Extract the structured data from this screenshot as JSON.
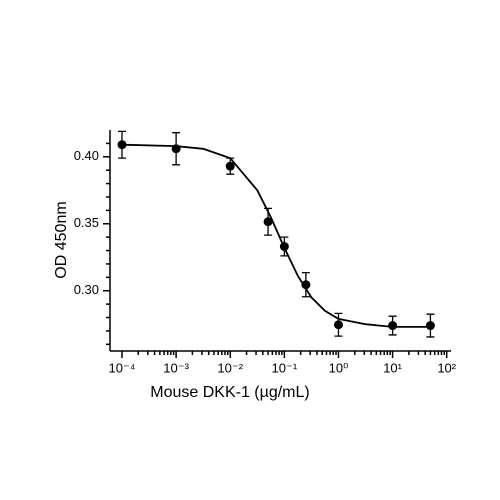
{
  "chart_data": {
    "type": "scatter",
    "xlabel": "Mouse DKK-1 (µg/mL)",
    "ylabel": "OD 450nm",
    "x": [
      0.0001,
      0.001,
      0.01,
      0.05,
      0.1,
      0.25,
      1,
      10,
      50
    ],
    "values": [
      0.409,
      0.406,
      0.393,
      0.3515,
      0.333,
      0.3045,
      0.2746,
      0.274,
      0.274
    ],
    "errors": [
      0.01,
      0.012,
      0.006,
      0.01,
      0.007,
      0.009,
      0.0085,
      0.007,
      0.0085
    ],
    "fit_x": [
      0.0001,
      0.001,
      0.00316,
      0.01,
      0.0316,
      0.0562,
      0.1,
      0.178,
      0.316,
      0.562,
      1,
      3.16,
      10,
      50
    ],
    "fit_values": [
      0.409,
      0.408,
      0.406,
      0.399,
      0.375,
      0.355,
      0.332,
      0.311,
      0.295,
      0.285,
      0.279,
      0.275,
      0.273,
      0.273
    ],
    "color": "#000000",
    "xscale": "log",
    "minor_ticks": true,
    "xlim": [
      6e-05,
      120
    ],
    "ylim": [
      0.255,
      0.42
    ],
    "xticks": [
      {
        "value": 0.0001,
        "label": "10⁻⁴"
      },
      {
        "value": 0.001,
        "label": "10⁻³"
      },
      {
        "value": 0.01,
        "label": "10⁻²"
      },
      {
        "value": 0.1,
        "label": "10⁻¹"
      },
      {
        "value": 1,
        "label": "10⁰"
      },
      {
        "value": 10,
        "label": "10¹"
      },
      {
        "value": 100,
        "label": "10²"
      }
    ],
    "yticks": [
      {
        "value": 0.3,
        "label": "0.30"
      },
      {
        "value": 0.35,
        "label": "0.35"
      },
      {
        "value": 0.4,
        "label": "0.40"
      }
    ]
  }
}
